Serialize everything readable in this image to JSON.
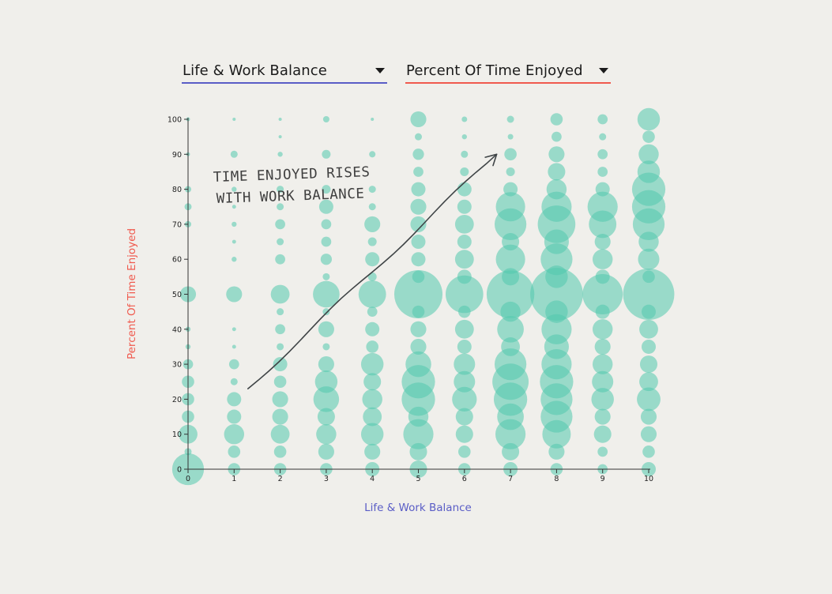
{
  "controls": {
    "x_select": {
      "selected": "Life & Work Balance",
      "color": "#5a5dc6"
    },
    "y_select": {
      "selected": "Percent Of Time Enjoyed",
      "color": "#f05a4e"
    }
  },
  "chart_data": {
    "type": "scatter",
    "encoding": "bubble area = number of responses",
    "xlabel": "Life & Work Balance",
    "ylabel": "Percent Of Time Enjoyed",
    "xlim": [
      0,
      10
    ],
    "ylim": [
      0,
      100
    ],
    "x_ticks": [
      0,
      1,
      2,
      3,
      4,
      5,
      6,
      7,
      8,
      9,
      10
    ],
    "y_ticks": [
      0,
      10,
      20,
      30,
      40,
      50,
      60,
      70,
      80,
      90,
      100
    ],
    "bubble_color": "#52c9ad",
    "xlabel_color": "#5a5dc6",
    "ylabel_color": "#f05a4e",
    "annotation": {
      "lines": [
        "TIME ENJOYED RISES",
        "WITH WORK BALANCE"
      ],
      "arrow_from": [
        1.3,
        23
      ],
      "arrow_to": [
        6.7,
        90
      ]
    },
    "points": [
      [
        0,
        100,
        0.3
      ],
      [
        0,
        90,
        0.3
      ],
      [
        0,
        80,
        0.8
      ],
      [
        0,
        75,
        1
      ],
      [
        0,
        70,
        0.8
      ],
      [
        0,
        50,
        5
      ],
      [
        0,
        40,
        0.5
      ],
      [
        0,
        35,
        0.5
      ],
      [
        0,
        30,
        2
      ],
      [
        0,
        25,
        3
      ],
      [
        0,
        20,
        3
      ],
      [
        0,
        15,
        3
      ],
      [
        0,
        10,
        7
      ],
      [
        0,
        5,
        1
      ],
      [
        0,
        0,
        20
      ],
      [
        1,
        100,
        0.2
      ],
      [
        1,
        90,
        1
      ],
      [
        1,
        80,
        0.5
      ],
      [
        1,
        75,
        0.3
      ],
      [
        1,
        70,
        0.5
      ],
      [
        1,
        65,
        0.3
      ],
      [
        1,
        60,
        0.5
      ],
      [
        1,
        50,
        5
      ],
      [
        1,
        40,
        0.3
      ],
      [
        1,
        35,
        0.3
      ],
      [
        1,
        30,
        2
      ],
      [
        1,
        25,
        1
      ],
      [
        1,
        20,
        4
      ],
      [
        1,
        15,
        4
      ],
      [
        1,
        10,
        8
      ],
      [
        1,
        5,
        3
      ],
      [
        1,
        0,
        3
      ],
      [
        2,
        100,
        0.2
      ],
      [
        2,
        95,
        0.2
      ],
      [
        2,
        90,
        0.5
      ],
      [
        2,
        80,
        1
      ],
      [
        2,
        75,
        1
      ],
      [
        2,
        70,
        2
      ],
      [
        2,
        65,
        1
      ],
      [
        2,
        60,
        2
      ],
      [
        2,
        50,
        7
      ],
      [
        2,
        45,
        1
      ],
      [
        2,
        40,
        2
      ],
      [
        2,
        35,
        1
      ],
      [
        2,
        30,
        4
      ],
      [
        2,
        25,
        3
      ],
      [
        2,
        20,
        5
      ],
      [
        2,
        15,
        5
      ],
      [
        2,
        10,
        7
      ],
      [
        2,
        5,
        3
      ],
      [
        2,
        0,
        3
      ],
      [
        3,
        100,
        0.8
      ],
      [
        3,
        90,
        1.5
      ],
      [
        3,
        80,
        1.5
      ],
      [
        3,
        75,
        4
      ],
      [
        3,
        70,
        2
      ],
      [
        3,
        65,
        2
      ],
      [
        3,
        60,
        2.5
      ],
      [
        3,
        55,
        1
      ],
      [
        3,
        50,
        14
      ],
      [
        3,
        45,
        1
      ],
      [
        3,
        40,
        5
      ],
      [
        3,
        35,
        1
      ],
      [
        3,
        30,
        5
      ],
      [
        3,
        25,
        10
      ],
      [
        3,
        20,
        13
      ],
      [
        3,
        15,
        6
      ],
      [
        3,
        10,
        8
      ],
      [
        3,
        5,
        5
      ],
      [
        3,
        0,
        3
      ],
      [
        4,
        100,
        0.2
      ],
      [
        4,
        90,
        0.8
      ],
      [
        4,
        80,
        1
      ],
      [
        4,
        75,
        1
      ],
      [
        4,
        70,
        5
      ],
      [
        4,
        65,
        1.5
      ],
      [
        4,
        60,
        4
      ],
      [
        4,
        55,
        1.5
      ],
      [
        4,
        50,
        15
      ],
      [
        4,
        45,
        2
      ],
      [
        4,
        40,
        4
      ],
      [
        4,
        35,
        3
      ],
      [
        4,
        30,
        10
      ],
      [
        4,
        25,
        6
      ],
      [
        4,
        20,
        8
      ],
      [
        4,
        15,
        7
      ],
      [
        4,
        10,
        10
      ],
      [
        4,
        5,
        5
      ],
      [
        4,
        0,
        4
      ],
      [
        5,
        100,
        5
      ],
      [
        5,
        95,
        1
      ],
      [
        5,
        90,
        2.5
      ],
      [
        5,
        85,
        2
      ],
      [
        5,
        80,
        4
      ],
      [
        5,
        75,
        5
      ],
      [
        5,
        70,
        5
      ],
      [
        5,
        65,
        4
      ],
      [
        5,
        60,
        4
      ],
      [
        5,
        55,
        3
      ],
      [
        5,
        50,
        46
      ],
      [
        5,
        45,
        3
      ],
      [
        5,
        40,
        5
      ],
      [
        5,
        35,
        5
      ],
      [
        5,
        30,
        13
      ],
      [
        5,
        25,
        22
      ],
      [
        5,
        20,
        22
      ],
      [
        5,
        15,
        8
      ],
      [
        5,
        10,
        18
      ],
      [
        5,
        5,
        6
      ],
      [
        5,
        0,
        6
      ],
      [
        6,
        100,
        0.6
      ],
      [
        6,
        95,
        0.5
      ],
      [
        6,
        90,
        1
      ],
      [
        6,
        85,
        1.5
      ],
      [
        6,
        80,
        4
      ],
      [
        6,
        75,
        4
      ],
      [
        6,
        70,
        7
      ],
      [
        6,
        65,
        4
      ],
      [
        6,
        60,
        7
      ],
      [
        6,
        55,
        4
      ],
      [
        6,
        50,
        28
      ],
      [
        6,
        45,
        3
      ],
      [
        6,
        40,
        7
      ],
      [
        6,
        35,
        4
      ],
      [
        6,
        30,
        9
      ],
      [
        6,
        25,
        9
      ],
      [
        6,
        20,
        12
      ],
      [
        6,
        15,
        6
      ],
      [
        6,
        10,
        6
      ],
      [
        6,
        5,
        3
      ],
      [
        6,
        0,
        3
      ],
      [
        7,
        100,
        1
      ],
      [
        7,
        95,
        0.6
      ],
      [
        7,
        90,
        3
      ],
      [
        7,
        85,
        1.5
      ],
      [
        7,
        80,
        4
      ],
      [
        7,
        75,
        17
      ],
      [
        7,
        70,
        20
      ],
      [
        7,
        65,
        6
      ],
      [
        7,
        60,
        17
      ],
      [
        7,
        55,
        6
      ],
      [
        7,
        50,
        45
      ],
      [
        7,
        45,
        8
      ],
      [
        7,
        40,
        14
      ],
      [
        7,
        35,
        7
      ],
      [
        7,
        30,
        20
      ],
      [
        7,
        25,
        26
      ],
      [
        7,
        20,
        22
      ],
      [
        7,
        15,
        14
      ],
      [
        7,
        10,
        18
      ],
      [
        7,
        5,
        6
      ],
      [
        7,
        0,
        4
      ],
      [
        8,
        100,
        3
      ],
      [
        8,
        95,
        2
      ],
      [
        8,
        90,
        5
      ],
      [
        8,
        85,
        6
      ],
      [
        8,
        80,
        8
      ],
      [
        8,
        75,
        18
      ],
      [
        8,
        70,
        28
      ],
      [
        8,
        65,
        12
      ],
      [
        8,
        60,
        20
      ],
      [
        8,
        55,
        10
      ],
      [
        8,
        50,
        55
      ],
      [
        8,
        45,
        10
      ],
      [
        8,
        40,
        18
      ],
      [
        8,
        35,
        12
      ],
      [
        8,
        30,
        18
      ],
      [
        8,
        25,
        22
      ],
      [
        8,
        20,
        20
      ],
      [
        8,
        15,
        20
      ],
      [
        8,
        10,
        16
      ],
      [
        8,
        5,
        5
      ],
      [
        8,
        0,
        3
      ],
      [
        9,
        100,
        2
      ],
      [
        9,
        95,
        1
      ],
      [
        9,
        90,
        2
      ],
      [
        9,
        85,
        2
      ],
      [
        9,
        80,
        4
      ],
      [
        9,
        75,
        18
      ],
      [
        9,
        70,
        15
      ],
      [
        9,
        65,
        5
      ],
      [
        9,
        60,
        8
      ],
      [
        9,
        55,
        4
      ],
      [
        9,
        50,
        32
      ],
      [
        9,
        45,
        4
      ],
      [
        9,
        40,
        8
      ],
      [
        9,
        35,
        5
      ],
      [
        9,
        30,
        8
      ],
      [
        9,
        25,
        9
      ],
      [
        9,
        20,
        10
      ],
      [
        9,
        15,
        5
      ],
      [
        9,
        10,
        6
      ],
      [
        9,
        5,
        2
      ],
      [
        9,
        0,
        2
      ],
      [
        10,
        100,
        10
      ],
      [
        10,
        95,
        3
      ],
      [
        10,
        90,
        8
      ],
      [
        10,
        85,
        10
      ],
      [
        10,
        80,
        22
      ],
      [
        10,
        75,
        22
      ],
      [
        10,
        70,
        20
      ],
      [
        10,
        65,
        8
      ],
      [
        10,
        60,
        9
      ],
      [
        10,
        55,
        3
      ],
      [
        10,
        50,
        52
      ],
      [
        10,
        45,
        4
      ],
      [
        10,
        40,
        7
      ],
      [
        10,
        35,
        4
      ],
      [
        10,
        30,
        6
      ],
      [
        10,
        25,
        7
      ],
      [
        10,
        20,
        11
      ],
      [
        10,
        15,
        5
      ],
      [
        10,
        10,
        5
      ],
      [
        10,
        5,
        3
      ],
      [
        10,
        0,
        4
      ]
    ]
  }
}
